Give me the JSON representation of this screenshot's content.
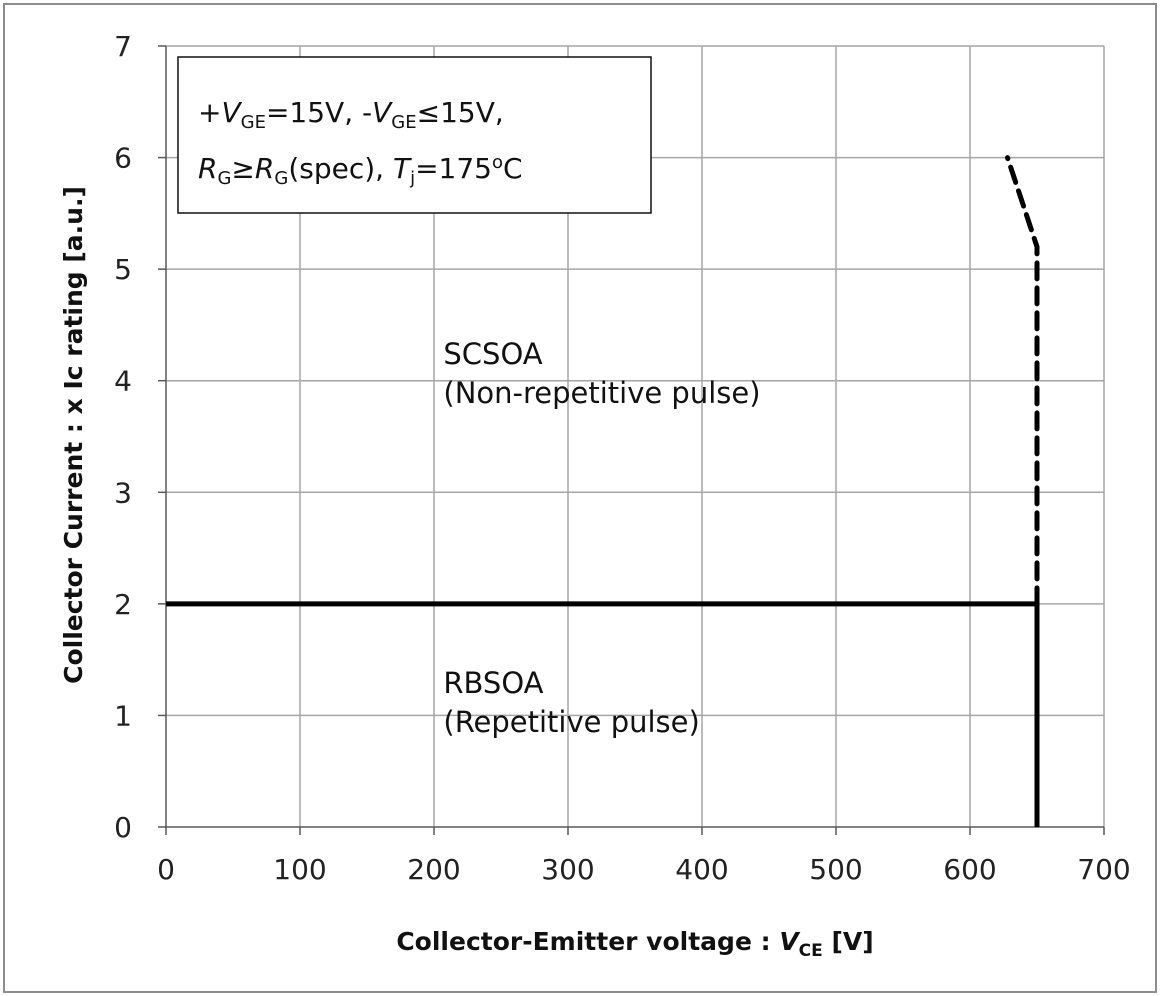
{
  "chart_data": {
    "type": "line",
    "title": "",
    "xlabel": "Collector-Emitter voltage : V_CE [V]",
    "ylabel": "Collector Current : x Ic rating [a.u.]",
    "xlabel_parts": {
      "prefix": "Collector-Emitter voltage : ",
      "var": "V",
      "sub": "CE",
      "suffix": " [V]"
    },
    "xlim": [
      0,
      700
    ],
    "ylim": [
      0,
      7
    ],
    "xticks": [
      "0",
      "100",
      "200",
      "300",
      "400",
      "500",
      "600",
      "700"
    ],
    "yticks": [
      "0",
      "1",
      "2",
      "3",
      "4",
      "5",
      "6",
      "7"
    ],
    "grid": true,
    "series": [
      {
        "style": "solid",
        "color": "#000000",
        "x": [
          0,
          650,
          650
        ],
        "y": [
          2,
          2,
          0
        ]
      },
      {
        "style": "dashed",
        "color": "#000000",
        "x": [
          650,
          650,
          650,
          628
        ],
        "y": [
          2,
          5.2,
          5.2,
          6
        ]
      }
    ],
    "annotations": [
      {
        "text": "SCSOA",
        "x": 207,
        "y": 4.15
      },
      {
        "text": "(Non-repetitive pulse)",
        "x": 207,
        "y": 3.8
      },
      {
        "text": "RBSOA",
        "x": 207,
        "y": 1.2
      },
      {
        "text": "(Repetitive pulse)",
        "x": 207,
        "y": 0.85
      }
    ],
    "conditions": {
      "line1": {
        "a": "+",
        "b": "V",
        "c": "GE",
        "d": "=15V, -",
        "e": "V",
        "f": "GE",
        "g": "≤",
        "h": "15V,"
      },
      "line2": {
        "a": "R",
        "b": "G",
        "c": "≥",
        "d": "R",
        "e": "G",
        "f": "(spec), ",
        "g": "T",
        "h": "j",
        "i": "=175",
        "j": "o",
        "k": "C"
      }
    }
  }
}
